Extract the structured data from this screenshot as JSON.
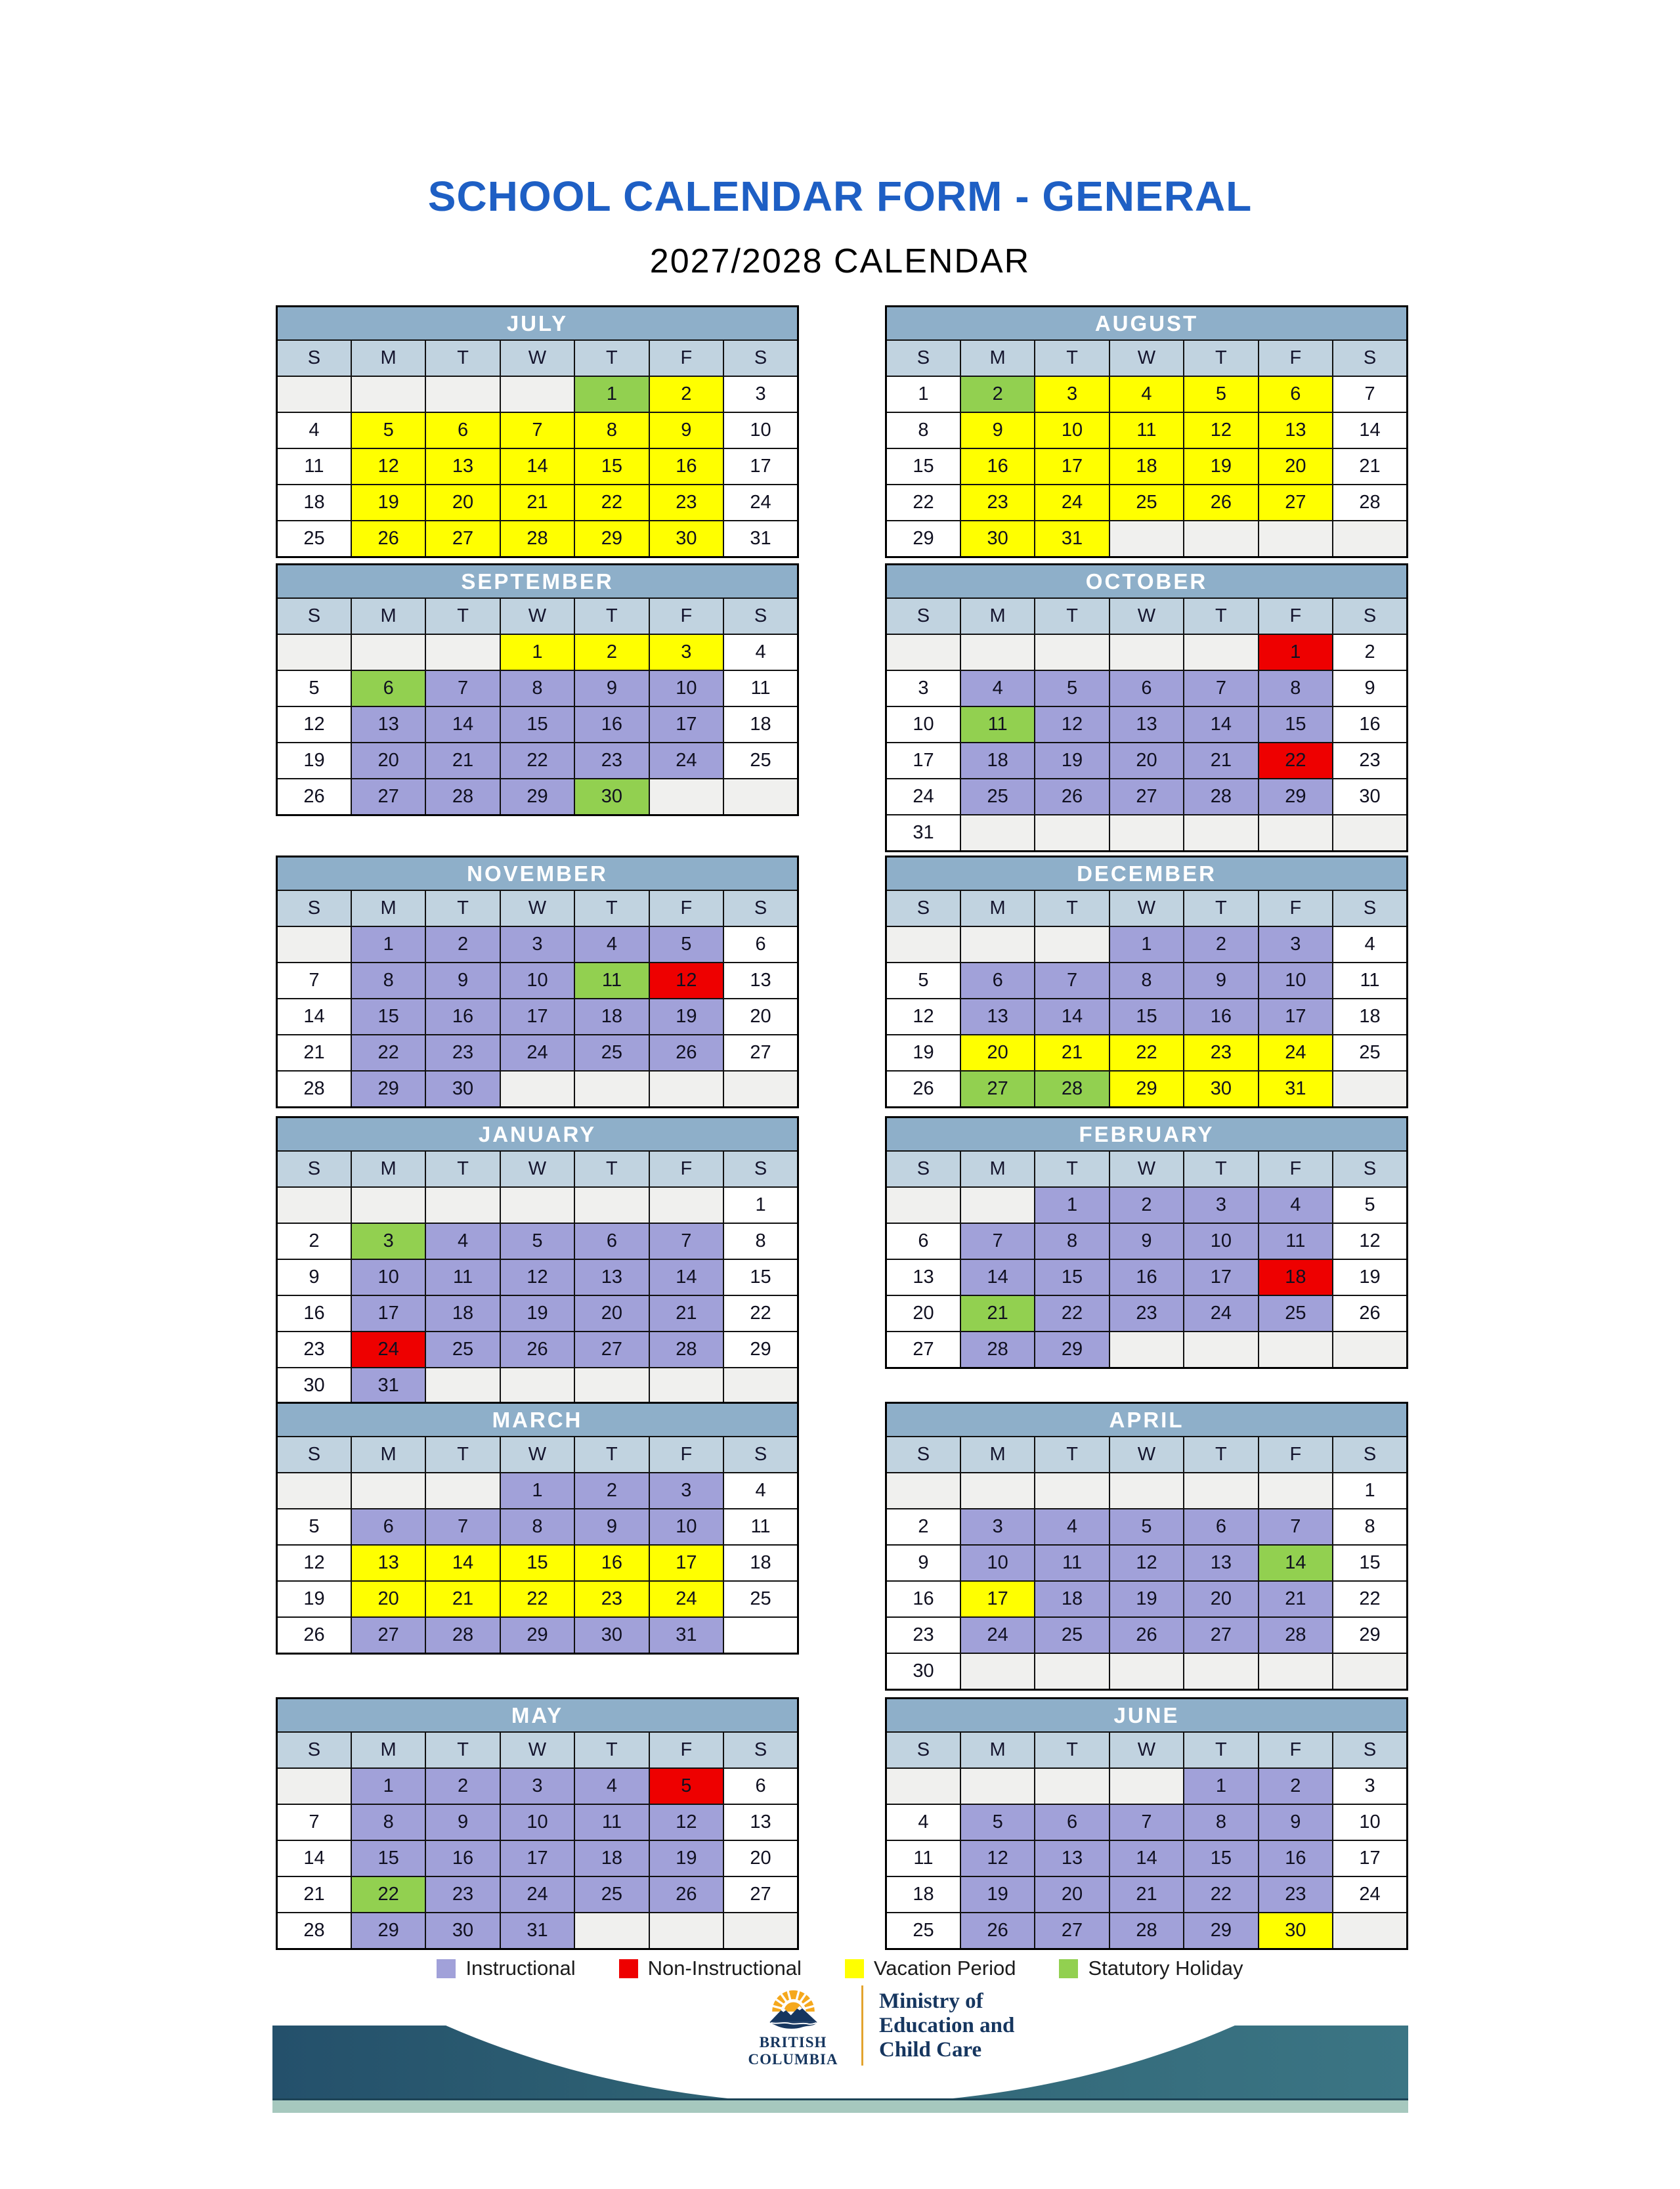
{
  "page": {
    "title": "SCHOOL CALENDAR FORM - GENERAL",
    "subtitle": "2027/2028 CALENDAR"
  },
  "colors": {
    "title_blue": "#1E5FC4",
    "month_title_bg": "#8EAFC9",
    "day_header_bg": "#C1D3E0",
    "instructional": "#A1A1D9",
    "non_instructional": "#EE0000",
    "vacation": "#FFFF00",
    "statutory": "#92D050",
    "empty_cell": "#F0F0EE",
    "weekend_cell": "#FFFFFF",
    "footer_teal_dark": "#24506B",
    "footer_teal": "#2E6173",
    "footer_teal_light": "#3B7584",
    "footer_seafoam": "#A6C8BE",
    "logo_navy": "#16365F",
    "logo_gold": "#E3A42F"
  },
  "days_header": [
    "S",
    "M",
    "T",
    "W",
    "T",
    "F",
    "S"
  ],
  "months": [
    {
      "name": "JULY",
      "rows": [
        [
          ":e",
          ":e",
          ":e",
          ":e",
          "1:h",
          "2:v",
          "3:w"
        ],
        [
          "4:w",
          "5:v",
          "6:v",
          "7:v",
          "8:v",
          "9:v",
          "10:w"
        ],
        [
          "11:w",
          "12:v",
          "13:v",
          "14:v",
          "15:v",
          "16:v",
          "17:w"
        ],
        [
          "18:w",
          "19:v",
          "20:v",
          "21:v",
          "22:v",
          "23:v",
          "24:w"
        ],
        [
          "25:w",
          "26:v",
          "27:v",
          "28:v",
          "29:v",
          "30:v",
          "31:w"
        ]
      ]
    },
    {
      "name": "AUGUST",
      "rows": [
        [
          "1:w",
          "2:h",
          "3:v",
          "4:v",
          "5:v",
          "6:v",
          "7:w"
        ],
        [
          "8:w",
          "9:v",
          "10:v",
          "11:v",
          "12:v",
          "13:v",
          "14:w"
        ],
        [
          "15:w",
          "16:v",
          "17:v",
          "18:v",
          "19:v",
          "20:v",
          "21:w"
        ],
        [
          "22:w",
          "23:v",
          "24:v",
          "25:v",
          "26:v",
          "27:v",
          "28:w"
        ],
        [
          "29:w",
          "30:v",
          "31:v",
          ":e",
          ":e",
          ":e",
          ":e"
        ]
      ]
    },
    {
      "name": "SEPTEMBER",
      "rows": [
        [
          ":e",
          ":e",
          ":e",
          "1:v",
          "2:v",
          "3:v",
          "4:w"
        ],
        [
          "5:w",
          "6:h",
          "7:i",
          "8:i",
          "9:i",
          "10:i",
          "11:w"
        ],
        [
          "12:w",
          "13:i",
          "14:i",
          "15:i",
          "16:i",
          "17:i",
          "18:w"
        ],
        [
          "19:w",
          "20:i",
          "21:i",
          "22:i",
          "23:i",
          "24:i",
          "25:w"
        ],
        [
          "26:w",
          "27:i",
          "28:i",
          "29:i",
          "30:h",
          ":e",
          ":e"
        ]
      ]
    },
    {
      "name": "OCTOBER",
      "rows": [
        [
          ":e",
          ":e",
          ":e",
          ":e",
          ":e",
          "1:n",
          "2:w"
        ],
        [
          "3:w",
          "4:i",
          "5:i",
          "6:i",
          "7:i",
          "8:i",
          "9:w"
        ],
        [
          "10:w",
          "11:h",
          "12:i",
          "13:i",
          "14:i",
          "15:i",
          "16:w"
        ],
        [
          "17:w",
          "18:i",
          "19:i",
          "20:i",
          "21:i",
          "22:n",
          "23:w"
        ],
        [
          "24:w",
          "25:i",
          "26:i",
          "27:i",
          "28:i",
          "29:i",
          "30:w"
        ],
        [
          "31:w",
          ":e",
          ":e",
          ":e",
          ":e",
          ":e",
          ":e"
        ]
      ]
    },
    {
      "name": "NOVEMBER",
      "rows": [
        [
          ":e",
          "1:i",
          "2:i",
          "3:i",
          "4:i",
          "5:i",
          "6:w"
        ],
        [
          "7:w",
          "8:i",
          "9:i",
          "10:i",
          "11:h",
          "12:n",
          "13:w"
        ],
        [
          "14:w",
          "15:i",
          "16:i",
          "17:i",
          "18:i",
          "19:i",
          "20:w"
        ],
        [
          "21:w",
          "22:i",
          "23:i",
          "24:i",
          "25:i",
          "26:i",
          "27:w"
        ],
        [
          "28:w",
          "29:i",
          "30:i",
          ":e",
          ":e",
          ":e",
          ":e"
        ]
      ]
    },
    {
      "name": "DECEMBER",
      "rows": [
        [
          ":e",
          ":e",
          ":e",
          "1:i",
          "2:i",
          "3:i",
          "4:w"
        ],
        [
          "5:w",
          "6:i",
          "7:i",
          "8:i",
          "9:i",
          "10:i",
          "11:w"
        ],
        [
          "12:w",
          "13:i",
          "14:i",
          "15:i",
          "16:i",
          "17:i",
          "18:w"
        ],
        [
          "19:w",
          "20:v",
          "21:v",
          "22:v",
          "23:v",
          "24:v",
          "25:w"
        ],
        [
          "26:w",
          "27:h",
          "28:h",
          "29:v",
          "30:v",
          "31:v",
          ":e"
        ]
      ]
    },
    {
      "name": "JANUARY",
      "rows": [
        [
          ":e",
          ":e",
          ":e",
          ":e",
          ":e",
          ":e",
          "1:w"
        ],
        [
          "2:w",
          "3:h",
          "4:i",
          "5:i",
          "6:i",
          "7:i",
          "8:w"
        ],
        [
          "9:w",
          "10:i",
          "11:i",
          "12:i",
          "13:i",
          "14:i",
          "15:w"
        ],
        [
          "16:w",
          "17:i",
          "18:i",
          "19:i",
          "20:i",
          "21:i",
          "22:w"
        ],
        [
          "23:w",
          "24:n",
          "25:i",
          "26:i",
          "27:i",
          "28:i",
          "29:w"
        ],
        [
          "30:w",
          "31:i",
          ":e",
          ":e",
          ":e",
          ":e",
          ":e"
        ]
      ]
    },
    {
      "name": "FEBRUARY",
      "rows": [
        [
          ":e",
          ":e",
          "1:i",
          "2:i",
          "3:i",
          "4:i",
          "5:w"
        ],
        [
          "6:w",
          "7:i",
          "8:i",
          "9:i",
          "10:i",
          "11:i",
          "12:w"
        ],
        [
          "13:w",
          "14:i",
          "15:i",
          "16:i",
          "17:i",
          "18:n",
          "19:w"
        ],
        [
          "20:w",
          "21:h",
          "22:i",
          "23:i",
          "24:i",
          "25:i",
          "26:w"
        ],
        [
          "27:w",
          "28:i",
          "29:i",
          ":e",
          ":e",
          ":e",
          ":e"
        ]
      ]
    },
    {
      "name": "MARCH",
      "rows": [
        [
          ":e",
          ":e",
          ":e",
          "1:i",
          "2:i",
          "3:i",
          "4:w"
        ],
        [
          "5:w",
          "6:i",
          "7:i",
          "8:i",
          "9:i",
          "10:i",
          "11:w"
        ],
        [
          "12:w",
          "13:v",
          "14:v",
          "15:v",
          "16:v",
          "17:v",
          "18:w"
        ],
        [
          "19:w",
          "20:v",
          "21:v",
          "22:v",
          "23:v",
          "24:v",
          "25:w"
        ],
        [
          "26:w",
          "27:i",
          "28:i",
          "29:i",
          "30:i",
          "31:i",
          ":w"
        ]
      ]
    },
    {
      "name": "APRIL",
      "rows": [
        [
          ":e",
          ":e",
          ":e",
          ":e",
          ":e",
          ":e",
          "1:w"
        ],
        [
          "2:w",
          "3:i",
          "4:i",
          "5:i",
          "6:i",
          "7:i",
          "8:w"
        ],
        [
          "9:w",
          "10:i",
          "11:i",
          "12:i",
          "13:i",
          "14:h",
          "15:w"
        ],
        [
          "16:w",
          "17:v",
          "18:i",
          "19:i",
          "20:i",
          "21:i",
          "22:w"
        ],
        [
          "23:w",
          "24:i",
          "25:i",
          "26:i",
          "27:i",
          "28:i",
          "29:w"
        ],
        [
          "30:w",
          ":e",
          ":e",
          ":e",
          ":e",
          ":e",
          ":e"
        ]
      ]
    },
    {
      "name": "MAY",
      "rows": [
        [
          ":e",
          "1:i",
          "2:i",
          "3:i",
          "4:i",
          "5:n",
          "6:w"
        ],
        [
          "7:w",
          "8:i",
          "9:i",
          "10:i",
          "11:i",
          "12:i",
          "13:w"
        ],
        [
          "14:w",
          "15:i",
          "16:i",
          "17:i",
          "18:i",
          "19:i",
          "20:w"
        ],
        [
          "21:w",
          "22:h",
          "23:i",
          "24:i",
          "25:i",
          "26:i",
          "27:w"
        ],
        [
          "28:w",
          "29:i",
          "30:i",
          "31:i",
          ":e",
          ":e",
          ":e"
        ]
      ]
    },
    {
      "name": "JUNE",
      "rows": [
        [
          ":e",
          ":e",
          ":e",
          ":e",
          "1:i",
          "2:i",
          "3:w"
        ],
        [
          "4:w",
          "5:i",
          "6:i",
          "7:i",
          "8:i",
          "9:i",
          "10:w"
        ],
        [
          "11:w",
          "12:i",
          "13:i",
          "14:i",
          "15:i",
          "16:i",
          "17:w"
        ],
        [
          "18:w",
          "19:i",
          "20:i",
          "21:i",
          "22:i",
          "23:i",
          "24:w"
        ],
        [
          "25:w",
          "26:i",
          "27:i",
          "28:i",
          "29:i",
          "30:v",
          ":e"
        ]
      ]
    }
  ],
  "legend": [
    {
      "label": "Instructional",
      "key": "instructional"
    },
    {
      "label": "Non-Instructional",
      "key": "non_instructional"
    },
    {
      "label": "Vacation Period",
      "key": "vacation"
    },
    {
      "label": "Statutory Holiday",
      "key": "statutory"
    }
  ],
  "footer": {
    "logo_line1": "BRITISH",
    "logo_line2": "COLUMBIA",
    "ministry_lines": [
      "Ministry of",
      "Education and",
      "Child Care"
    ]
  }
}
